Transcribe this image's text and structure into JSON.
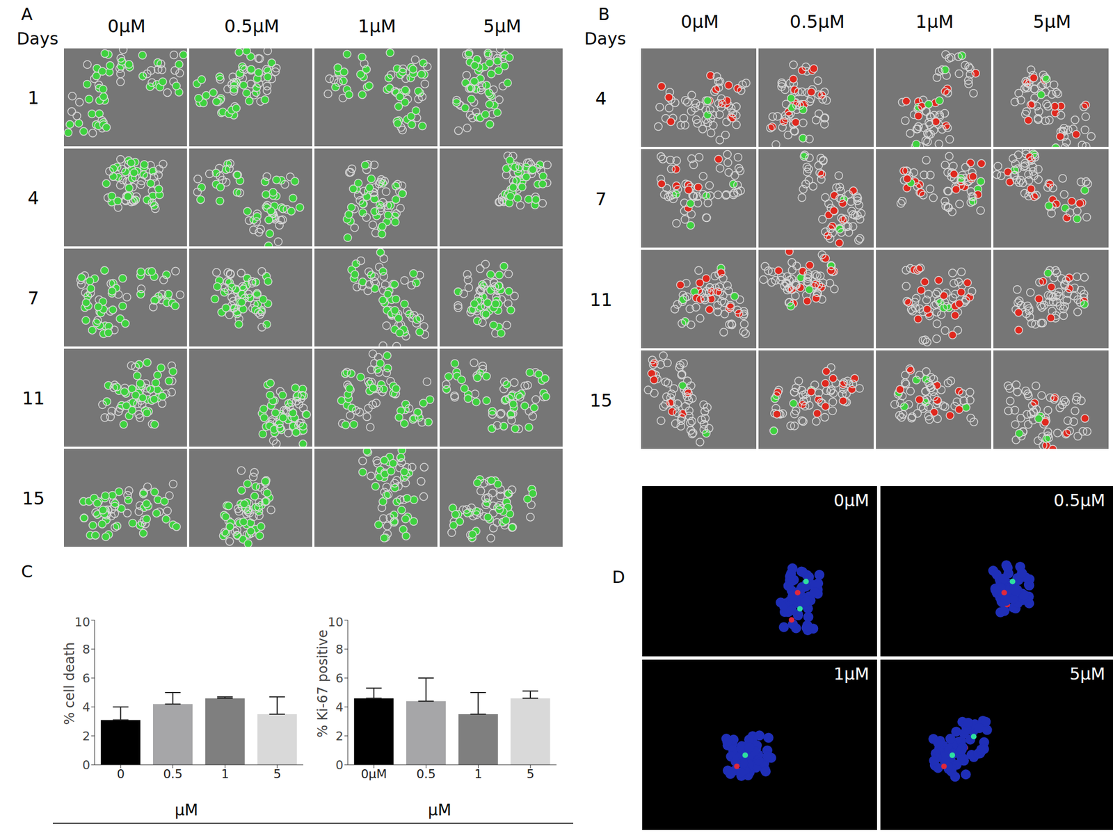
{
  "panels": {
    "A": {
      "label": "A",
      "row_header": "Days",
      "columns": [
        "0μM",
        "0.5μM",
        "1μM",
        "5μM"
      ],
      "rows": [
        "1",
        "4",
        "7",
        "11",
        "15"
      ]
    },
    "B": {
      "label": "B",
      "row_header": "Days",
      "columns": [
        "0μM",
        "0.5μM",
        "1μM",
        "5μM"
      ],
      "rows": [
        "4",
        "7",
        "11",
        "15"
      ]
    },
    "C": {
      "label": "C"
    },
    "D": {
      "label": "D",
      "panels": [
        "0μM",
        "0.5μM",
        "1μM",
        "5μM"
      ]
    }
  },
  "chart_data": [
    {
      "type": "bar",
      "y_label": "% cell death",
      "x_label": "μM",
      "categories": [
        "0",
        "0.5",
        "1",
        "5"
      ],
      "values": [
        3.1,
        4.2,
        4.6,
        3.5
      ],
      "errors": [
        0.9,
        0.8,
        0.1,
        1.2
      ],
      "colors": [
        "#000000",
        "#a6a6a8",
        "#7f7f7f",
        "#d9d9d9"
      ],
      "ylim": [
        0,
        10
      ],
      "yticks": [
        0,
        2,
        4,
        6,
        8,
        10
      ]
    },
    {
      "type": "bar",
      "y_label": "% Ki-67 positive",
      "x_label": "μM",
      "categories": [
        "0μM",
        "0.5",
        "1",
        "5"
      ],
      "values": [
        4.6,
        4.4,
        3.5,
        4.6
      ],
      "errors": [
        0.7,
        1.6,
        1.5,
        0.5
      ],
      "colors": [
        "#000000",
        "#a6a6a8",
        "#7f7f7f",
        "#d9d9d9"
      ],
      "ylim": [
        0,
        10
      ],
      "yticks": [
        0,
        2,
        4,
        6,
        8,
        10
      ]
    }
  ]
}
